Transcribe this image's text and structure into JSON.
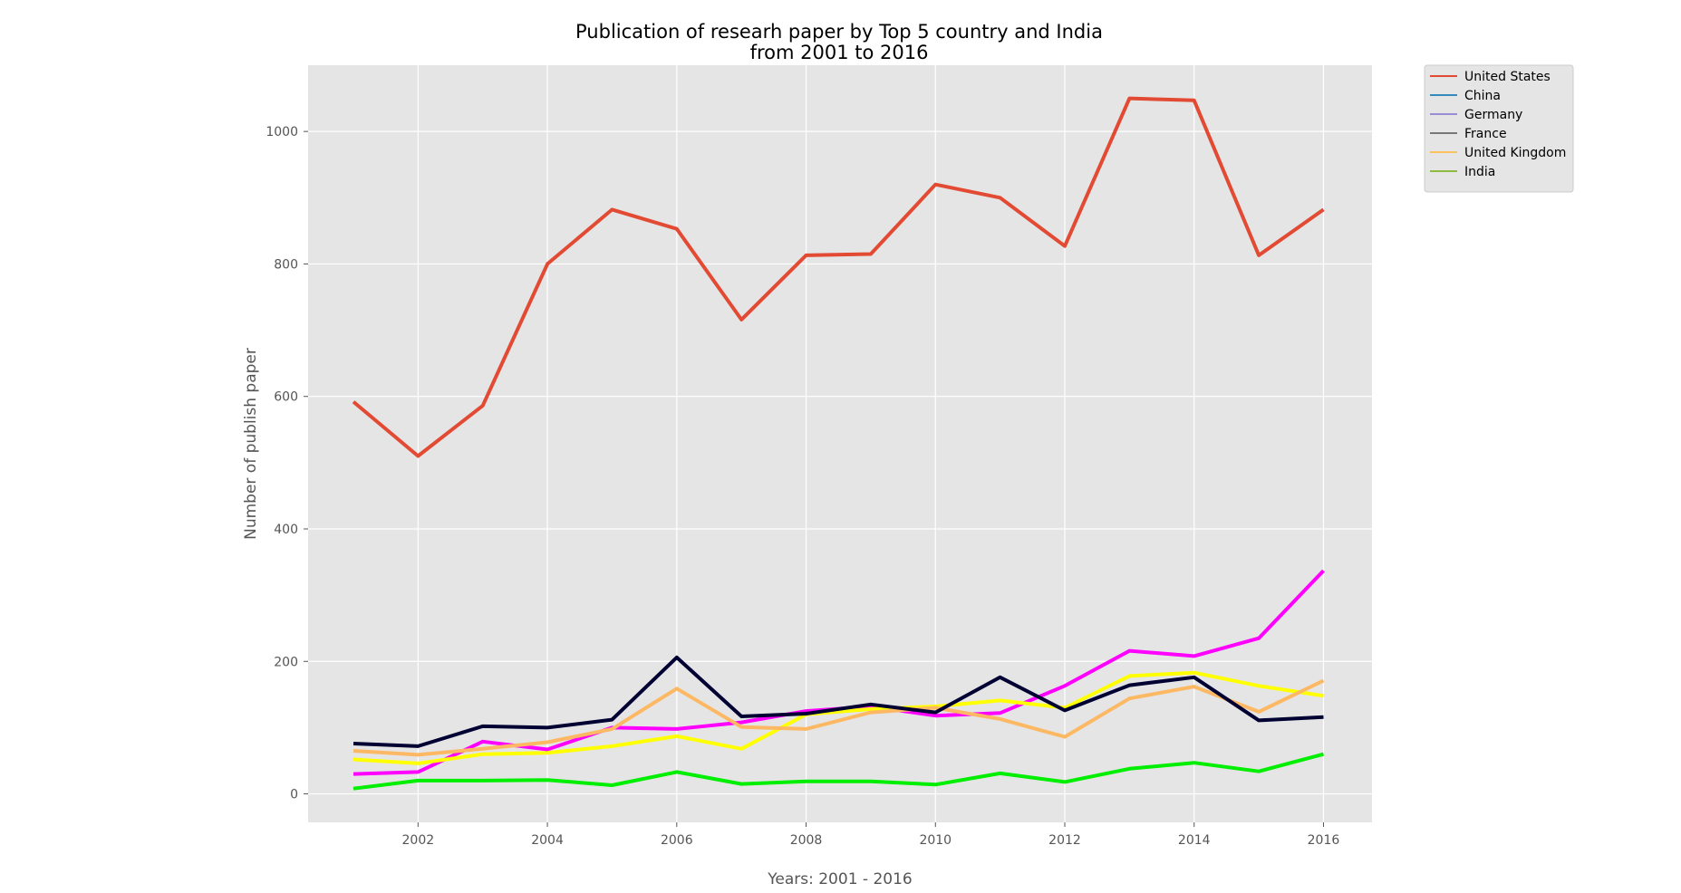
{
  "chart_data": {
    "type": "line",
    "title": "Publication of researh paper by Top 5 country and India\nfrom 2001 to 2016",
    "xlabel": "Years: 2001 - 2016",
    "ylabel": "Number of publish paper",
    "xlim": [
      2000.3,
      2016.75
    ],
    "ylim": [
      -43,
      1100
    ],
    "xticks": [
      2002,
      2004,
      2006,
      2008,
      2010,
      2012,
      2014,
      2016
    ],
    "yticks": [
      0,
      200,
      400,
      600,
      800,
      1000
    ],
    "grid": true,
    "legend_position": "outside-top-right",
    "x": [
      2001,
      2002,
      2003,
      2004,
      2005,
      2006,
      2007,
      2008,
      2009,
      2010,
      2011,
      2012,
      2013,
      2014,
      2015,
      2016
    ],
    "series": [
      {
        "name": "",
        "color": "#ff00ff",
        "values": [
          30,
          33,
          79,
          67,
          100,
          98,
          108,
          125,
          132,
          118,
          122,
          163,
          216,
          208,
          235,
          337
        ]
      },
      {
        "name": "",
        "color": "#ffff00",
        "values": [
          52,
          46,
          60,
          62,
          72,
          87,
          68,
          120,
          128,
          132,
          141,
          130,
          178,
          183,
          163,
          148
        ]
      },
      {
        "name": "",
        "color": "#fdb863",
        "values": [
          65,
          59,
          68,
          78,
          98,
          159,
          101,
          98,
          123,
          130,
          113,
          86,
          144,
          162,
          124,
          171
        ]
      },
      {
        "name": "",
        "color": "#000033",
        "values": [
          76,
          72,
          102,
          100,
          112,
          206,
          117,
          121,
          135,
          123,
          176,
          126,
          164,
          176,
          111,
          116
        ]
      },
      {
        "name": "",
        "color": "#00ee00",
        "values": [
          8,
          20,
          20,
          21,
          13,
          33,
          15,
          19,
          19,
          14,
          31,
          18,
          38,
          47,
          34,
          60
        ]
      },
      {
        "name": "",
        "color": "#e24a33",
        "values": [
          592,
          510,
          586,
          800,
          882,
          853,
          716,
          813,
          815,
          920,
          900,
          827,
          1050,
          1047,
          813,
          882
        ]
      }
    ],
    "legend": [
      {
        "label": "United States",
        "color": "#e24a33"
      },
      {
        "label": "China",
        "color": "#348abd"
      },
      {
        "label": "Germany",
        "color": "#988ed5"
      },
      {
        "label": "France",
        "color": "#777777"
      },
      {
        "label": "United Kingdom",
        "color": "#fbc15e"
      },
      {
        "label": "India",
        "color": "#8eba42"
      }
    ],
    "colors": {
      "plot_background": "#e5e5e5",
      "grid": "#ffffff",
      "legend_background": "#e5e5e5"
    }
  }
}
